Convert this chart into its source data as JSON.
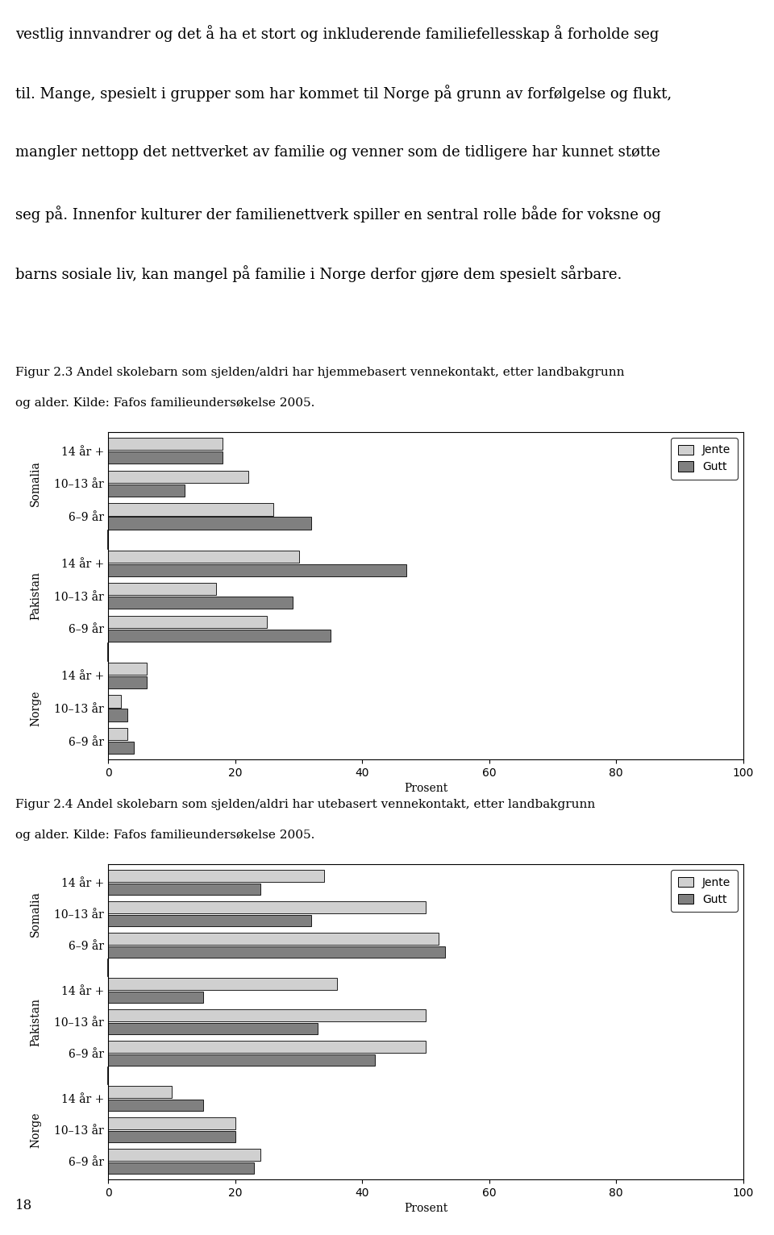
{
  "text_intro_lines": [
    "vestlig innvandrer og det å ha et stort og inkluderende familiefellesskap å forholde seg",
    "til. Mange, spesielt i grupper som har kommet til Norge på grunn av forfølgelse og flukt,",
    "mangler nettopp det nettverket av familie og venner som de tidligere har kunnet støtte",
    "seg på. Innenfor kulturer der familienettverk spiller en sentral rolle både for voksne og",
    "barns sosiale liv, kan mangel på familie i Norge derfor gjøre dem spesielt sårbare."
  ],
  "fig1_title_lines": [
    "Figur 2.3 Andel skolebarn som sjelden/aldri har hjemmebasert vennekontakt, etter landbakgrunn",
    "og alder. Kilde: Fafos familieundersøkelse 2005."
  ],
  "fig2_title_lines": [
    "Figur 2.4 Andel skolebarn som sjelden/aldri har utebasert vennekontakt, etter landbakgrunn",
    "og alder. Kilde: Fafos familieundersøkelse 2005."
  ],
  "groups": [
    "Somalia",
    "Pakistan",
    "Norge"
  ],
  "age_labels": [
    "14 år +",
    "10–13 år",
    "6–9 år"
  ],
  "legend_jente": "Jente",
  "legend_gutt": "Gutt",
  "color_jente": "#d0d0d0",
  "color_gutt": "#808080",
  "xlabel": "Prosent",
  "xlim": [
    0,
    100
  ],
  "xticks": [
    0,
    20,
    40,
    60,
    80,
    100
  ],
  "fig1_data": {
    "Somalia": {
      "14 år +": {
        "Jente": 18,
        "Gutt": 18
      },
      "10–13 år": {
        "Jente": 22,
        "Gutt": 12
      },
      "6–9 år": {
        "Jente": 26,
        "Gutt": 32
      }
    },
    "Pakistan": {
      "14 år +": {
        "Jente": 30,
        "Gutt": 47
      },
      "10–13 år": {
        "Jente": 17,
        "Gutt": 29
      },
      "6–9 år": {
        "Jente": 25,
        "Gutt": 35
      }
    },
    "Norge": {
      "14 år +": {
        "Jente": 6,
        "Gutt": 6
      },
      "10–13 år": {
        "Jente": 2,
        "Gutt": 3
      },
      "6–9 år": {
        "Jente": 3,
        "Gutt": 4
      }
    }
  },
  "fig2_data": {
    "Somalia": {
      "14 år +": {
        "Jente": 34,
        "Gutt": 24
      },
      "10–13 år": {
        "Jente": 50,
        "Gutt": 32
      },
      "6–9 år": {
        "Jente": 52,
        "Gutt": 53
      }
    },
    "Pakistan": {
      "14 år +": {
        "Jente": 36,
        "Gutt": 15
      },
      "10–13 år": {
        "Jente": 50,
        "Gutt": 33
      },
      "6–9 år": {
        "Jente": 50,
        "Gutt": 42
      }
    },
    "Norge": {
      "14 år +": {
        "Jente": 10,
        "Gutt": 15
      },
      "10–13 år": {
        "Jente": 20,
        "Gutt": 20
      },
      "6–9 år": {
        "Jente": 24,
        "Gutt": 23
      }
    }
  },
  "background_color": "#ffffff",
  "page_number": "18"
}
